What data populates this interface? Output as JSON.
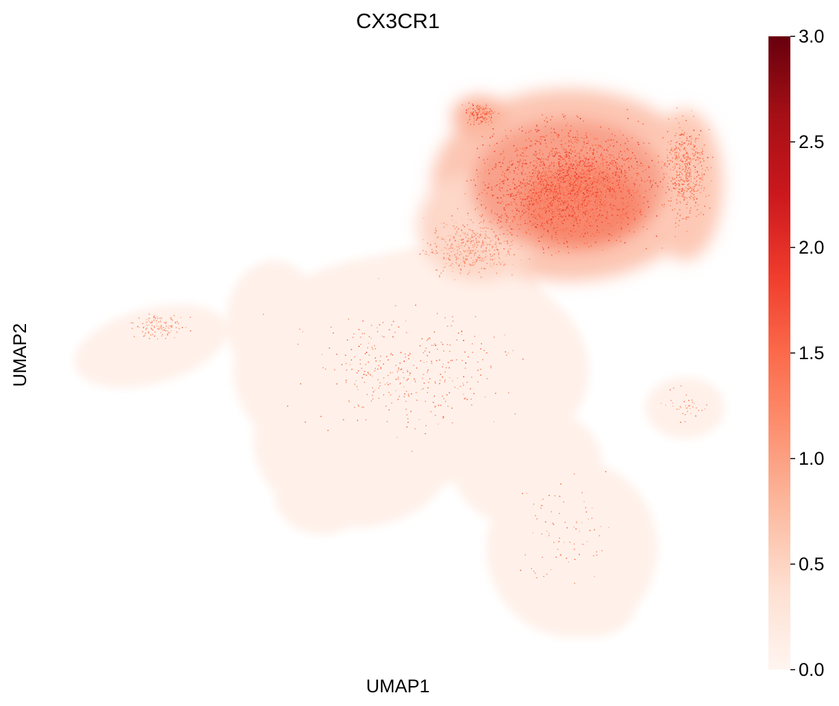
{
  "chart_data": {
    "type": "scatter",
    "title": "CX3CR1",
    "xlabel": "UMAP1",
    "ylabel": "UMAP2",
    "colormap": "Reds",
    "colorbar": {
      "min": 0.0,
      "max": 3.0,
      "ticks": [
        0.0,
        0.5,
        1.0,
        1.5,
        2.0,
        2.5,
        3.0
      ],
      "tick_labels": [
        "0.0",
        "0.5",
        "1.0",
        "1.5",
        "2.0",
        "2.5",
        "3.0"
      ],
      "stops": [
        "#fff5f0",
        "#fee0d2",
        "#fcbba1",
        "#fc9272",
        "#fb6a4a",
        "#ef3b2c",
        "#cb181d",
        "#a50f15",
        "#67000d"
      ]
    },
    "grid": false,
    "axes_visible": false,
    "regions": [
      {
        "name": "upper-right high expression cluster",
        "level": 1.6
      },
      {
        "name": "upper-right cluster halo",
        "level": 1.1
      },
      {
        "name": "central body",
        "level": 0.1
      },
      {
        "name": "left arm",
        "level": 0.25
      },
      {
        "name": "right lobe",
        "level": 0.15
      },
      {
        "name": "lower body",
        "level": 0.08
      }
    ]
  }
}
